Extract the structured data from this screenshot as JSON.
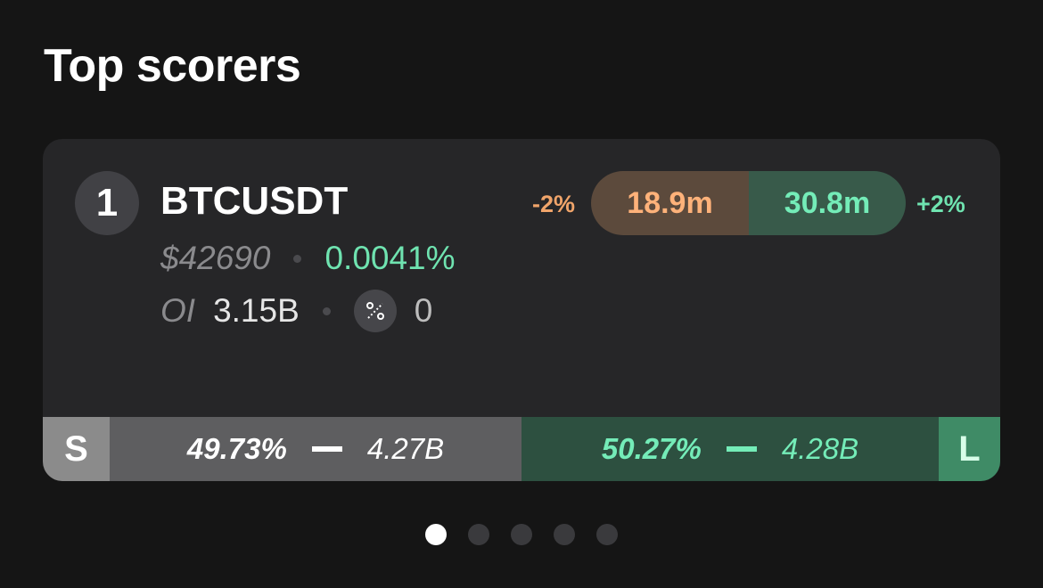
{
  "header": {
    "title": "Top scorers"
  },
  "card": {
    "rank": "1",
    "symbol": "BTCUSDT",
    "price": "$42690",
    "funding_rate": "0.0041%",
    "oi_label": "OI",
    "oi_value": "3.15B",
    "percent_icon": "percent-badge-icon",
    "percent_count": "0",
    "volume": {
      "neg_delta": "-2%",
      "sell": "18.9m",
      "buy": "30.8m",
      "pos_delta": "+2%"
    },
    "long_short": {
      "short_tag": "S",
      "short_pct": "49.73%",
      "short_value": "4.27B",
      "long_pct": "50.27%",
      "long_value": "4.28B",
      "long_tag": "L"
    }
  },
  "pager": {
    "count": 5,
    "active_index": 0
  },
  "colors": {
    "background": "#151515",
    "card": "#262628",
    "positive": "#6fe3b0",
    "negative": "#f0a46a"
  }
}
